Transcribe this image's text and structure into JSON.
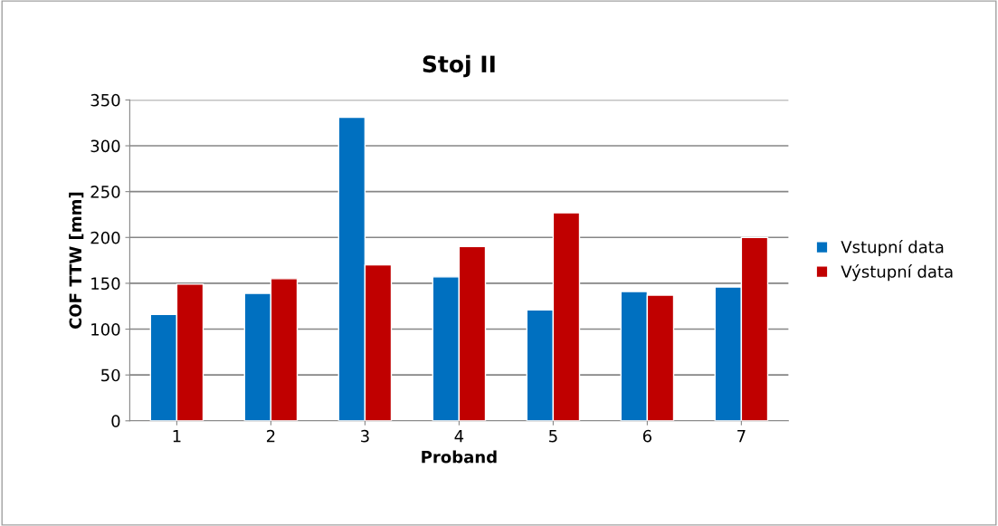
{
  "chart_data": {
    "type": "bar",
    "title": "Stoj II",
    "xlabel": "Proband",
    "ylabel": "COF TTW [mm]",
    "categories": [
      "1",
      "2",
      "3",
      "4",
      "5",
      "6",
      "7"
    ],
    "series": [
      {
        "name": "Vstupní data",
        "color": "#0070c0",
        "values": [
          116,
          139,
          331,
          157,
          121,
          141,
          146
        ]
      },
      {
        "name": "Výstupní data",
        "color": "#c00000",
        "values": [
          149,
          155,
          170,
          190,
          227,
          137,
          200
        ]
      }
    ],
    "ylim": [
      0,
      350
    ],
    "yticks": [
      0,
      50,
      100,
      150,
      200,
      250,
      300,
      350
    ],
    "grid": "y",
    "legend": "right"
  }
}
